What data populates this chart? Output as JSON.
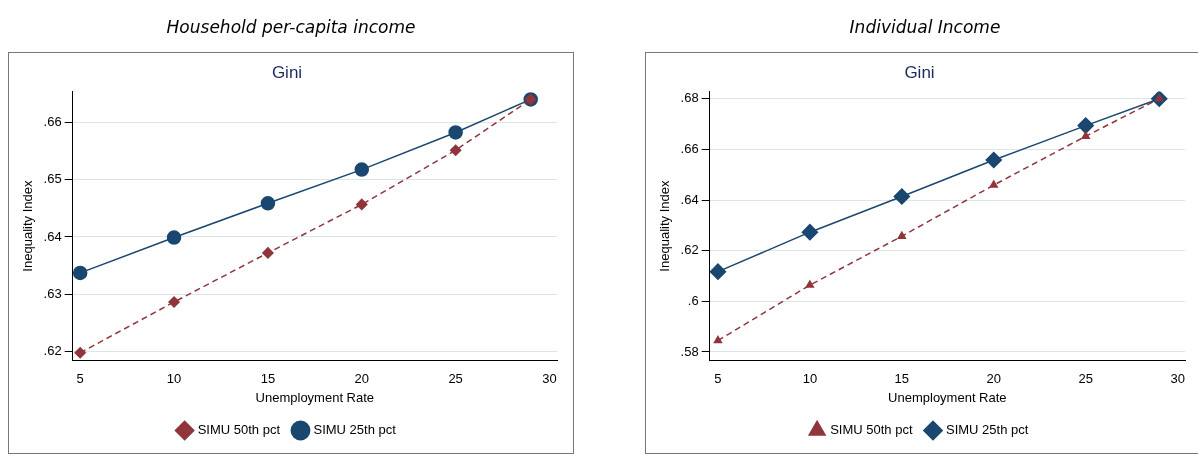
{
  "chart_data": [
    {
      "type": "line",
      "title": "Household per-capita income",
      "subtitle": "Gini",
      "xlabel": "Unemployment Rate",
      "ylabel": "Inequality Index",
      "x": [
        5,
        10,
        15,
        20,
        25,
        29
      ],
      "series": [
        {
          "name": "SIMU 25th pct",
          "color": "#1a476f",
          "marker": "circle",
          "line_style": "solid",
          "values": [
            0.6337,
            0.6399,
            0.6459,
            0.6518,
            0.6583,
            0.6641
          ]
        },
        {
          "name": "SIMU 50th pct",
          "color": "#90353b",
          "marker": "diamond",
          "line_style": "dashed",
          "values": [
            0.6197,
            0.6286,
            0.6372,
            0.6457,
            0.6552,
            0.6641
          ]
        }
      ],
      "xlim": [
        4.6,
        30.4
      ],
      "xticks": [
        5,
        10,
        15,
        20,
        25,
        30
      ],
      "ylim": [
        0.6183,
        0.6655
      ],
      "yticks": [
        {
          "value": 0.62,
          "label": ".62"
        },
        {
          "value": 0.63,
          "label": ".63"
        },
        {
          "value": 0.64,
          "label": ".64"
        },
        {
          "value": 0.65,
          "label": ".65"
        },
        {
          "value": 0.66,
          "label": ".66"
        }
      ],
      "grid": "y",
      "legend": "bottom"
    },
    {
      "type": "line",
      "title": "Individual Income",
      "subtitle": "Gini",
      "xlabel": "Unemployment Rate",
      "ylabel": "Inequality Index",
      "x": [
        5,
        10,
        15,
        20,
        25,
        29
      ],
      "series": [
        {
          "name": "SIMU 25th pct",
          "color": "#1a476f",
          "marker": "diamond",
          "line_style": "solid",
          "values": [
            0.6117,
            0.6273,
            0.6414,
            0.6558,
            0.6694,
            0.68
          ]
        },
        {
          "name": "SIMU 50th pct",
          "color": "#90353b",
          "marker": "triangle",
          "line_style": "dashed",
          "values": [
            0.5845,
            0.6064,
            0.6257,
            0.6459,
            0.6652,
            0.68
          ]
        }
      ],
      "xlim": [
        4.55,
        30.4
      ],
      "xticks": [
        5,
        10,
        15,
        20,
        25,
        30
      ],
      "ylim": [
        0.5765,
        0.6829
      ],
      "yticks": [
        {
          "value": 0.58,
          "label": ".58"
        },
        {
          "value": 0.6,
          "label": ".6"
        },
        {
          "value": 0.62,
          "label": ".62"
        },
        {
          "value": 0.64,
          "label": ".64"
        },
        {
          "value": 0.66,
          "label": ".66"
        },
        {
          "value": 0.68,
          "label": ".68"
        }
      ],
      "grid": "y",
      "legend": "bottom"
    }
  ]
}
